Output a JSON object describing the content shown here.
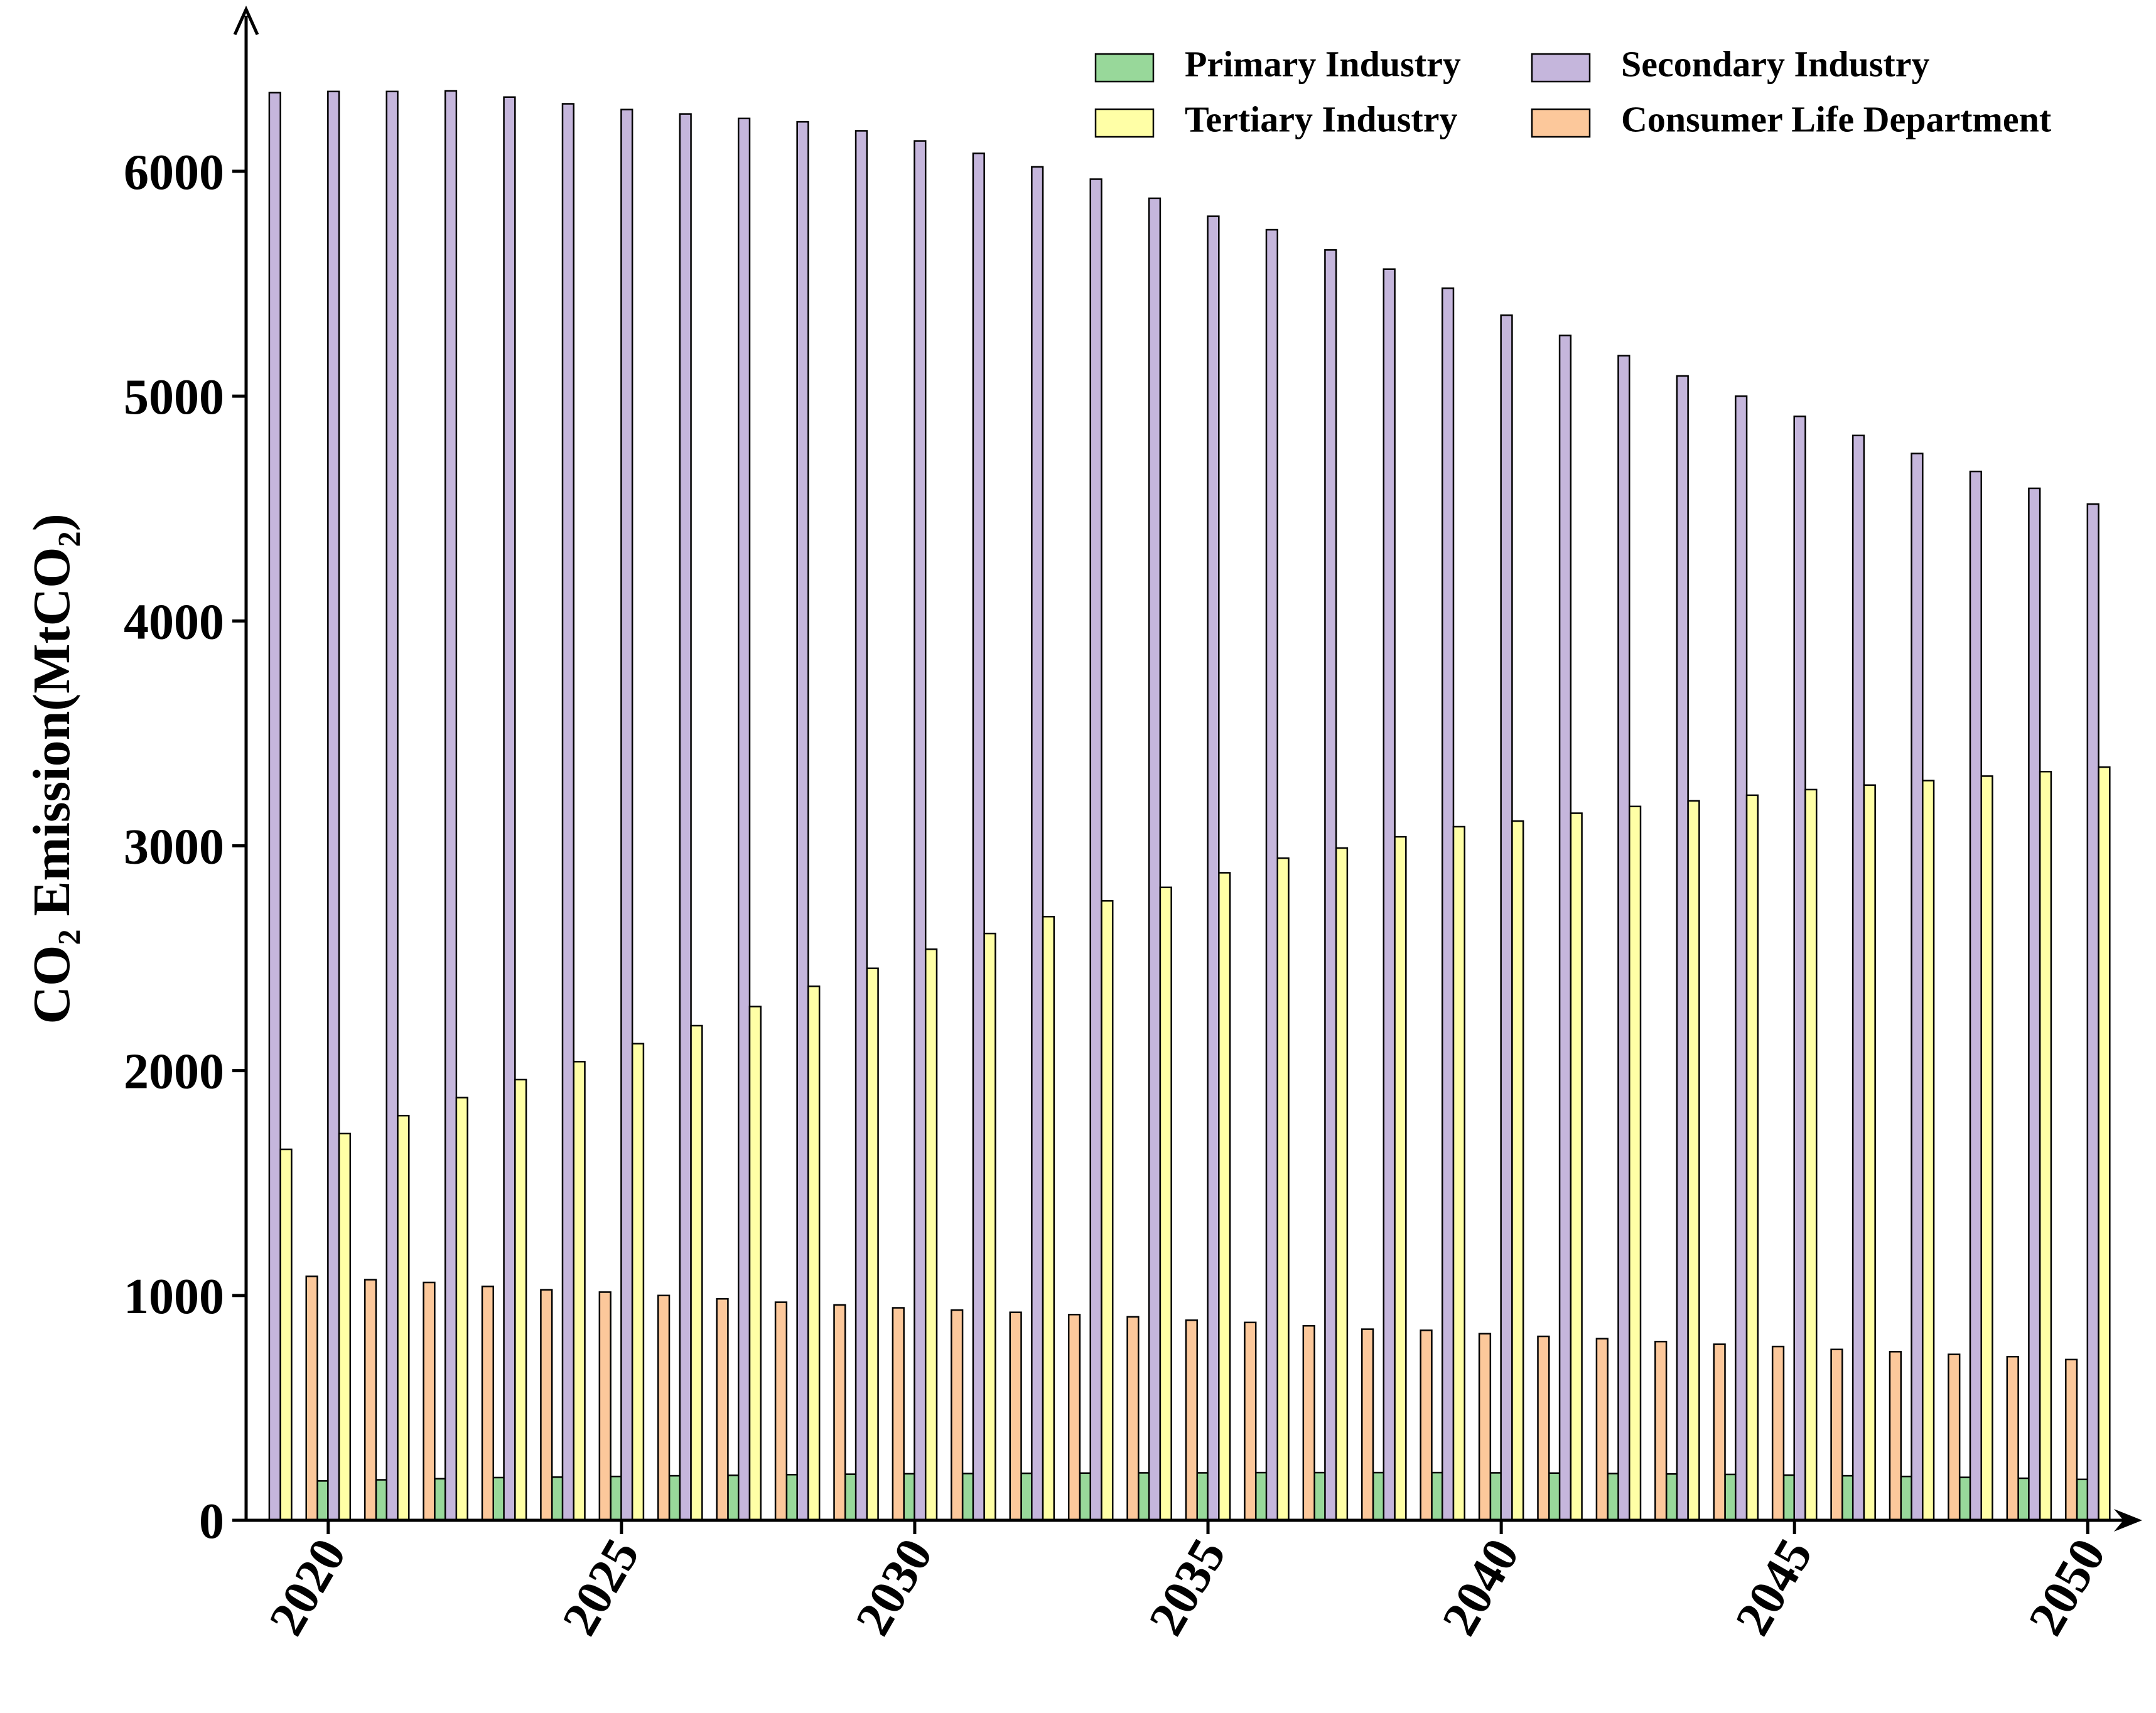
{
  "chart_data": {
    "type": "bar",
    "y_label": "CO₂ Emission(MtCO₂)",
    "x": [
      2019,
      2020,
      2021,
      2022,
      2023,
      2024,
      2025,
      2026,
      2027,
      2028,
      2029,
      2030,
      2031,
      2032,
      2033,
      2034,
      2035,
      2036,
      2037,
      2038,
      2039,
      2040,
      2041,
      2042,
      2043,
      2044,
      2045,
      2046,
      2047,
      2048,
      2049,
      2050
    ],
    "series": [
      {
        "name": "Primary Industry",
        "color": "#98d89a",
        "values": [
          null,
          175,
          180,
          185,
          190,
          192,
          195,
          198,
          200,
          203,
          205,
          207,
          208,
          209,
          210,
          211,
          211,
          212,
          212,
          212,
          212,
          211,
          210,
          208,
          206,
          204,
          201,
          198,
          195,
          191,
          187,
          182
        ]
      },
      {
        "name": "Secondary Industry",
        "color": "#c5b6dc",
        "values": [
          6350,
          6355,
          6355,
          6358,
          6330,
          6300,
          6275,
          6255,
          6235,
          6220,
          6180,
          6135,
          6080,
          6020,
          5965,
          5880,
          5800,
          5740,
          5650,
          5565,
          5480,
          5360,
          5270,
          5180,
          5090,
          5000,
          4910,
          4825,
          4745,
          4665,
          4590,
          4520
        ]
      },
      {
        "name": "Tertiary Industry",
        "color": "#ffffa6",
        "values": [
          1650,
          1720,
          1800,
          1880,
          1960,
          2040,
          2120,
          2200,
          2285,
          2375,
          2455,
          2540,
          2610,
          2685,
          2755,
          2815,
          2880,
          2945,
          2990,
          3040,
          3085,
          3110,
          3145,
          3175,
          3200,
          3225,
          3250,
          3270,
          3290,
          3310,
          3330,
          3350
        ]
      },
      {
        "name": "Consumer Life Department",
        "color": "#fcc89b",
        "values": [
          null,
          1085,
          1070,
          1058,
          1040,
          1025,
          1015,
          1000,
          985,
          970,
          958,
          945,
          935,
          925,
          915,
          905,
          890,
          880,
          865,
          850,
          845,
          830,
          818,
          808,
          795,
          783,
          773,
          760,
          750,
          738,
          728,
          715
        ]
      }
    ],
    "xlim": [
      2018.6,
      2050.5
    ],
    "xticks": [
      2020,
      2025,
      2030,
      2035,
      2040,
      2045,
      2050
    ],
    "ylim": [
      0,
      6600
    ],
    "yticks": [
      0,
      1000,
      2000,
      3000,
      4000,
      5000,
      6000
    ],
    "legend_position": "upper right",
    "grid": false
  }
}
